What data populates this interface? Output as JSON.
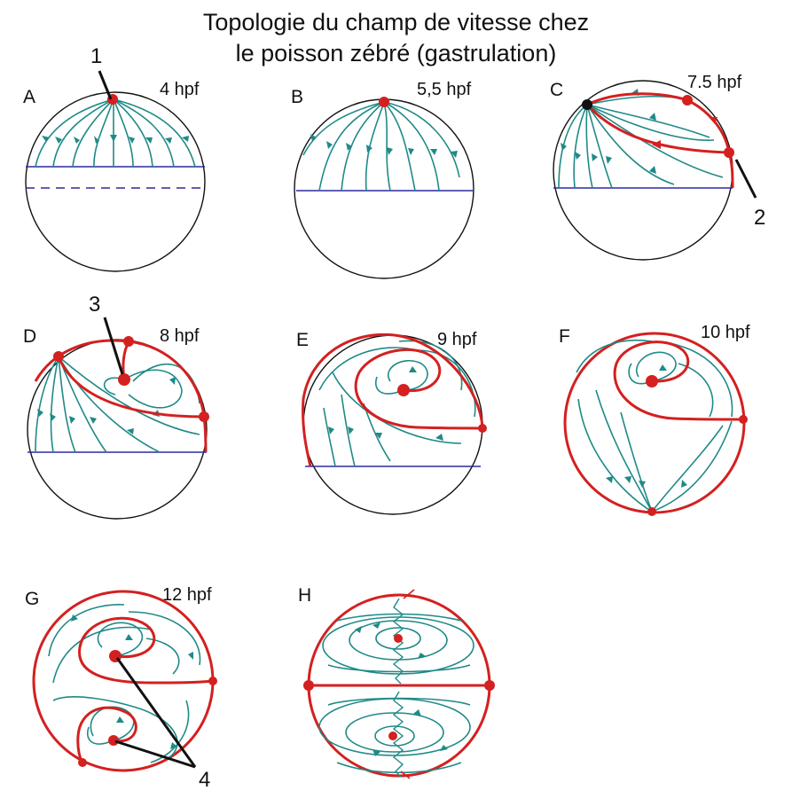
{
  "title_line1": "Topologie du champ de vitesse chez",
  "title_line2": "le poisson zébré (gastrulation)",
  "panels": [
    {
      "label": "A",
      "time": "4 hpf"
    },
    {
      "label": "B",
      "time": "5,5 hpf"
    },
    {
      "label": "C",
      "time": "7.5 hpf"
    },
    {
      "label": "D",
      "time": "8 hpf"
    },
    {
      "label": "E",
      "time": "9 hpf"
    },
    {
      "label": "F",
      "time": "10 hpf"
    },
    {
      "label": "G",
      "time": "12 hpf"
    },
    {
      "label": "H",
      "time": ""
    }
  ],
  "callouts": [
    "1",
    "2",
    "3",
    "4"
  ],
  "colors": {
    "stream": "#1f8a87",
    "separatrix": "#d42020",
    "margin": "#2a2aa0",
    "outline": "#111111"
  }
}
